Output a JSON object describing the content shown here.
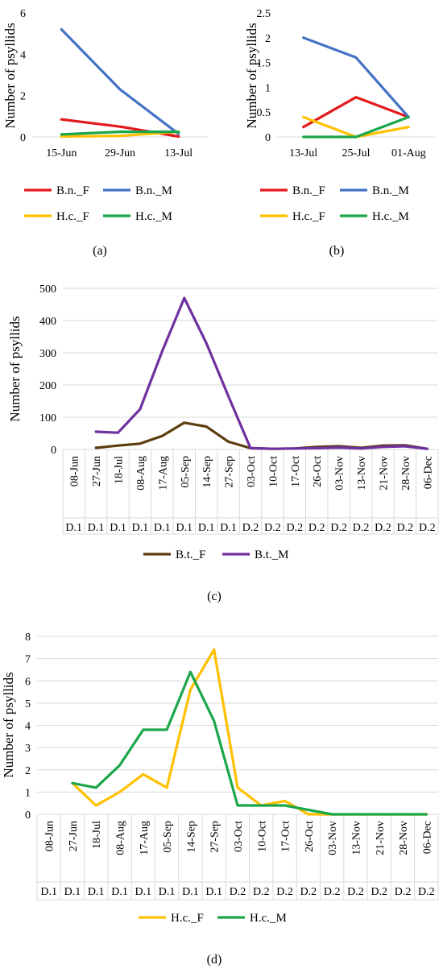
{
  "chart_data": [
    {
      "id": "a",
      "caption": "(a)",
      "type": "line",
      "ylabel": "Number of psyllids",
      "categories": [
        "15-Jun",
        "29-Jun",
        "13-Jul"
      ],
      "ylim": [
        0,
        6
      ],
      "yticks": [
        0,
        2,
        4,
        6
      ],
      "ytick_labels": [
        "0",
        "2",
        "4",
        "6"
      ],
      "legend_position": "bottom",
      "series": [
        {
          "name": "B.n._F",
          "color": "#e31a1c",
          "values": [
            0.85,
            0.5,
            0.02
          ]
        },
        {
          "name": "B.n._M",
          "color": "#4472c4",
          "values": [
            5.2,
            2.3,
            0.15
          ]
        },
        {
          "name": "H.c._F",
          "color": "#ffc000",
          "values": [
            0.02,
            0.05,
            0.25
          ]
        },
        {
          "name": "H.c._M",
          "color": "#1aa64a",
          "values": [
            0.12,
            0.25,
            0.25
          ]
        }
      ]
    },
    {
      "id": "b",
      "caption": "(b)",
      "type": "line",
      "ylabel": "Number of psyllids",
      "categories": [
        "13-Jul",
        "25-Jul",
        "01-Aug"
      ],
      "ylim": [
        0,
        2.5
      ],
      "yticks": [
        0,
        0.5,
        1,
        1.5,
        2,
        2.5
      ],
      "ytick_labels": [
        "0",
        "0.5",
        "1",
        "1.5",
        "2",
        "2.5"
      ],
      "legend_position": "bottom",
      "series": [
        {
          "name": "B.n._F",
          "color": "#e31a1c",
          "values": [
            0.2,
            0.8,
            0.4
          ]
        },
        {
          "name": "B.n._M",
          "color": "#4472c4",
          "values": [
            2.0,
            1.6,
            0.4
          ]
        },
        {
          "name": "H.c._F",
          "color": "#ffc000",
          "values": [
            0.4,
            0.0,
            0.2
          ]
        },
        {
          "name": "H.c._M",
          "color": "#1aa64a",
          "values": [
            0.0,
            0.0,
            0.4
          ]
        }
      ]
    },
    {
      "id": "c",
      "caption": "(c)",
      "type": "line",
      "ylabel": "Number of psyllids",
      "categories": [
        "08-Jun",
        "27-Jun",
        "18-Jul",
        "08-Aug",
        "17-Aug",
        "05-Sep",
        "14-Sep",
        "27-Sep",
        "03-Oct",
        "10-Oct",
        "17-Oct",
        "26-Oct",
        "03-Nov",
        "13-Nov",
        "21-Nov",
        "28-Nov",
        "06-Dec"
      ],
      "groups": [
        "D.1",
        "D.1",
        "D.1",
        "D.1",
        "D.1",
        "D.1",
        "D.1",
        "D.1",
        "D.2",
        "D.2",
        "D.2",
        "D.2",
        "D.2",
        "D.2",
        "D.2",
        "D.2",
        "D.2"
      ],
      "ylim": [
        0,
        500
      ],
      "yticks": [
        0,
        100,
        200,
        300,
        400,
        500
      ],
      "ytick_labels": [
        "0",
        "100",
        "200",
        "300",
        "400",
        "500"
      ],
      "legend_position": "bottom",
      "series": [
        {
          "name": "B.t._F",
          "color": "#5c3d0e",
          "values": [
            null,
            5,
            12,
            18,
            42,
            83,
            71,
            24,
            4,
            2,
            3,
            8,
            10,
            5,
            12,
            13,
            2
          ]
        },
        {
          "name": "B.t._M",
          "color": "#7030a0",
          "values": [
            null,
            55,
            52,
            125,
            305,
            470,
            330,
            165,
            4,
            2,
            3,
            4,
            6,
            3,
            8,
            10,
            2
          ]
        }
      ]
    },
    {
      "id": "d",
      "caption": "(d)",
      "type": "line",
      "ylabel": "Number of psyllids",
      "categories": [
        "08-Jun",
        "27-Jun",
        "18-Jul",
        "08-Aug",
        "17-Aug",
        "05-Sep",
        "14-Sep",
        "27-Sep",
        "03-Oct",
        "10-Oct",
        "17-Oct",
        "26-Oct",
        "03-Nov",
        "13-Nov",
        "21-Nov",
        "28-Nov",
        "06-Dec"
      ],
      "groups": [
        "D.1",
        "D.1",
        "D.1",
        "D.1",
        "D.1",
        "D.1",
        "D.1",
        "D.1",
        "D.2",
        "D.2",
        "D.2",
        "D.2",
        "D.2",
        "D.2",
        "D.2",
        "D.2",
        "D.2"
      ],
      "ylim": [
        0,
        8
      ],
      "yticks": [
        0,
        1,
        2,
        3,
        4,
        5,
        6,
        7,
        8
      ],
      "ytick_labels": [
        "0",
        "1",
        "2",
        "3",
        "4",
        "5",
        "6",
        "7",
        "8"
      ],
      "legend_position": "bottom",
      "series": [
        {
          "name": "H.c._F",
          "color": "#ffc000",
          "values": [
            null,
            1.4,
            0.4,
            1.0,
            1.8,
            1.2,
            5.6,
            7.4,
            1.2,
            0.4,
            0.6,
            0.0,
            0.0,
            0.0,
            0.0,
            0.0,
            0.0
          ]
        },
        {
          "name": "H.c._M",
          "color": "#1aa64a",
          "values": [
            null,
            1.4,
            1.2,
            2.2,
            3.8,
            3.8,
            6.4,
            4.2,
            0.4,
            0.4,
            0.4,
            0.2,
            0.0,
            0.0,
            0.0,
            0.0,
            0.0
          ]
        }
      ]
    }
  ]
}
